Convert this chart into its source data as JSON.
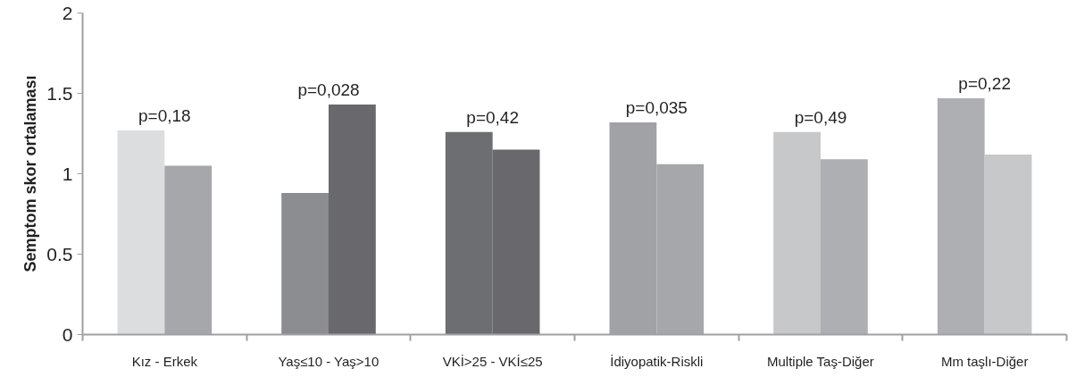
{
  "chart_data": {
    "type": "bar",
    "ylabel": "Semptom skor ortalaması",
    "categories": [
      "Kız - Erkek",
      "Yaş≤10 - Yaş>10",
      "VKİ>25 - VKİ≤25",
      "İdiyopatik-Riskli",
      "Multiple Taş-Diğer",
      "Mm taşlı-Diğer"
    ],
    "series": [
      {
        "values": [
          1.27,
          0.88,
          1.26,
          1.32,
          1.26,
          1.47
        ],
        "colors": [
          "#dcdddf",
          "#8c8d91",
          "#6d6e72",
          "#a1a2a6",
          "#c7c8ca",
          "#aeafb3"
        ]
      },
      {
        "values": [
          1.05,
          1.43,
          1.15,
          1.06,
          1.09,
          1.12
        ],
        "colors": [
          "#a6a7ab",
          "#69696d",
          "#69696d",
          "#a6a7ab",
          "#aeafb3",
          "#c7c8ca"
        ]
      }
    ],
    "ylim": [
      0,
      2
    ],
    "yticks": [
      0,
      {
        "value": 0.5,
        "label": "0.5"
      },
      1,
      {
        "value": 1.5,
        "label": "1.5"
      },
      2
    ],
    "grid": false,
    "annotations": [
      "p=0,18",
      "p=0,028",
      "p=0,42",
      "p=0,035",
      "p=0,49",
      "p=0,22"
    ]
  }
}
